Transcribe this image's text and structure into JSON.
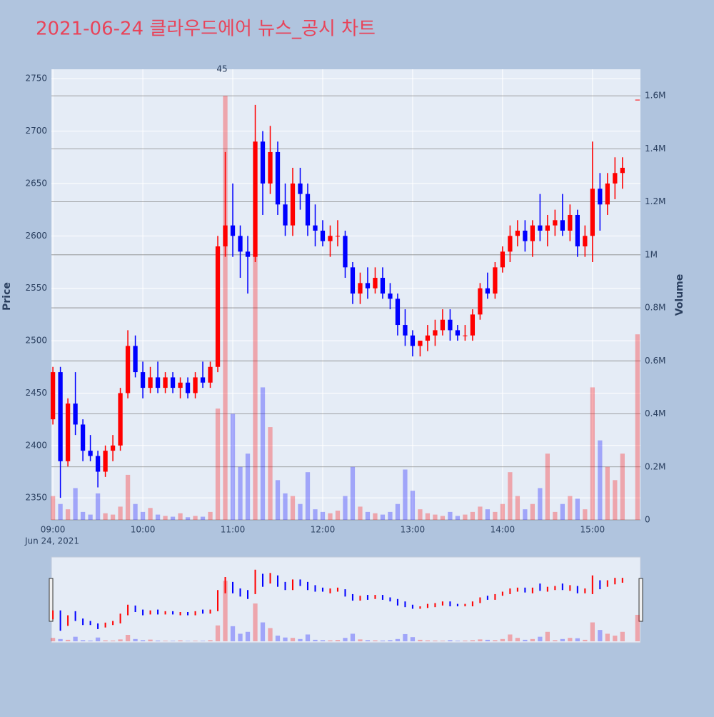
{
  "chart_data": {
    "type": "candlestick",
    "title": "2021-06-24 클라우드에어 뉴스_공시 차트",
    "y_title": "Price",
    "y2_title": "Volume",
    "x_date_label": "Jun 24, 2021",
    "annotation": "45",
    "up_color": "#ff0000",
    "down_color": "#0000ff",
    "x": [
      "09:00",
      "09:05",
      "09:10",
      "09:15",
      "09:20",
      "09:25",
      "09:30",
      "09:35",
      "09:40",
      "09:45",
      "09:50",
      "09:55",
      "10:00",
      "10:05",
      "10:10",
      "10:15",
      "10:20",
      "10:25",
      "10:30",
      "10:35",
      "10:40",
      "10:45",
      "10:50",
      "10:55",
      "11:00",
      "11:05",
      "11:10",
      "11:15",
      "11:20",
      "11:25",
      "11:30",
      "11:35",
      "11:40",
      "11:45",
      "11:50",
      "11:55",
      "12:00",
      "12:05",
      "12:10",
      "12:15",
      "12:20",
      "12:25",
      "12:30",
      "12:35",
      "12:40",
      "12:45",
      "12:50",
      "12:55",
      "13:00",
      "13:05",
      "13:10",
      "13:15",
      "13:20",
      "13:25",
      "13:30",
      "13:35",
      "13:40",
      "13:45",
      "13:50",
      "13:55",
      "14:00",
      "14:05",
      "14:10",
      "14:15",
      "14:20",
      "14:25",
      "14:30",
      "14:35",
      "14:40",
      "14:45",
      "14:50",
      "14:55",
      "15:00",
      "15:05",
      "15:10",
      "15:15",
      "15:20",
      "15:30"
    ],
    "open": [
      2425,
      2470,
      2385,
      2440,
      2420,
      2395,
      2390,
      2375,
      2395,
      2400,
      2450,
      2495,
      2470,
      2455,
      2465,
      2455,
      2465,
      2455,
      2460,
      2450,
      2465,
      2460,
      2475,
      2590,
      2610,
      2600,
      2585,
      2580,
      2690,
      2650,
      2680,
      2630,
      2610,
      2650,
      2640,
      2610,
      2605,
      2595,
      2600,
      2600,
      2570,
      2545,
      2555,
      2550,
      2560,
      2545,
      2540,
      2515,
      2505,
      2495,
      2500,
      2505,
      2510,
      2520,
      2510,
      2505,
      2505,
      2525,
      2550,
      2545,
      2570,
      2585,
      2600,
      2605,
      2595,
      2610,
      2605,
      2610,
      2615,
      2605,
      2620,
      2590,
      2600,
      2645,
      2630,
      2650,
      2660,
      2730
    ],
    "high": [
      2475,
      2475,
      2445,
      2470,
      2425,
      2410,
      2395,
      2400,
      2410,
      2455,
      2510,
      2505,
      2480,
      2475,
      2480,
      2470,
      2470,
      2465,
      2465,
      2470,
      2480,
      2480,
      2600,
      2680,
      2650,
      2610,
      2600,
      2725,
      2700,
      2705,
      2690,
      2650,
      2665,
      2665,
      2650,
      2630,
      2615,
      2610,
      2615,
      2605,
      2575,
      2565,
      2570,
      2570,
      2570,
      2555,
      2545,
      2530,
      2510,
      2500,
      2515,
      2520,
      2530,
      2530,
      2515,
      2515,
      2530,
      2555,
      2565,
      2575,
      2590,
      2610,
      2615,
      2615,
      2615,
      2640,
      2620,
      2625,
      2640,
      2630,
      2625,
      2610,
      2690,
      2660,
      2660,
      2675,
      2675,
      2730
    ],
    "low": [
      2420,
      2350,
      2380,
      2410,
      2385,
      2385,
      2360,
      2370,
      2385,
      2395,
      2445,
      2465,
      2445,
      2450,
      2450,
      2450,
      2450,
      2445,
      2445,
      2445,
      2455,
      2455,
      2470,
      2580,
      2580,
      2560,
      2545,
      2575,
      2620,
      2640,
      2620,
      2600,
      2600,
      2625,
      2600,
      2590,
      2590,
      2580,
      2590,
      2560,
      2535,
      2535,
      2540,
      2545,
      2540,
      2530,
      2505,
      2495,
      2485,
      2485,
      2490,
      2495,
      2505,
      2500,
      2500,
      2500,
      2500,
      2520,
      2540,
      2540,
      2565,
      2575,
      2590,
      2585,
      2580,
      2595,
      2590,
      2600,
      2600,
      2595,
      2580,
      2580,
      2575,
      2605,
      2620,
      2635,
      2645,
      2730
    ],
    "close": [
      2470,
      2385,
      2440,
      2420,
      2395,
      2390,
      2375,
      2395,
      2400,
      2450,
      2495,
      2470,
      2455,
      2465,
      2455,
      2465,
      2455,
      2460,
      2450,
      2465,
      2460,
      2475,
      2590,
      2610,
      2600,
      2585,
      2580,
      2690,
      2650,
      2680,
      2630,
      2610,
      2650,
      2640,
      2610,
      2605,
      2595,
      2600,
      2600,
      2570,
      2545,
      2555,
      2550,
      2560,
      2545,
      2540,
      2515,
      2505,
      2495,
      2500,
      2505,
      2510,
      2520,
      2510,
      2505,
      2505,
      2525,
      2550,
      2545,
      2570,
      2585,
      2600,
      2605,
      2595,
      2610,
      2605,
      2610,
      2615,
      2605,
      2620,
      2590,
      2600,
      2645,
      2630,
      2650,
      2660,
      2665,
      2730
    ],
    "volume": [
      90000,
      60000,
      40000,
      120000,
      30000,
      20000,
      100000,
      25000,
      20000,
      50000,
      170000,
      60000,
      30000,
      45000,
      20000,
      15000,
      12000,
      25000,
      10000,
      15000,
      12000,
      30000,
      420000,
      1600000,
      400000,
      200000,
      250000,
      1000000,
      500000,
      350000,
      150000,
      100000,
      90000,
      60000,
      180000,
      40000,
      30000,
      25000,
      35000,
      90000,
      200000,
      50000,
      30000,
      25000,
      20000,
      30000,
      60000,
      190000,
      110000,
      40000,
      25000,
      20000,
      15000,
      30000,
      15000,
      20000,
      30000,
      50000,
      40000,
      30000,
      60000,
      180000,
      90000,
      40000,
      60000,
      120000,
      250000,
      30000,
      60000,
      90000,
      80000,
      40000,
      500000,
      300000,
      200000,
      150000,
      250000,
      700000
    ],
    "xlim": [
      "08:59",
      "15:32"
    ],
    "xticks": [
      "09:00",
      "10:00",
      "11:00",
      "12:00",
      "13:00",
      "14:00",
      "15:00"
    ],
    "ylim": [
      2329,
      2759
    ],
    "yticks": [
      2350,
      2400,
      2450,
      2500,
      2550,
      2600,
      2650,
      2700,
      2750
    ],
    "y2lim": [
      0,
      1700000
    ],
    "y2ticks": [
      0,
      {
        "value": 200000,
        "label": "0.2M"
      },
      {
        "value": 400000,
        "label": "0.4M"
      },
      {
        "value": 600000,
        "label": "0.6M"
      },
      {
        "value": 800000,
        "label": "0.8M"
      },
      {
        "value": 1000000,
        "label": "1M"
      },
      {
        "value": 1200000,
        "label": "1.2M"
      },
      {
        "value": 1400000,
        "label": "1.4M"
      },
      {
        "value": 1600000,
        "label": "1.6M"
      }
    ],
    "grid": true
  }
}
